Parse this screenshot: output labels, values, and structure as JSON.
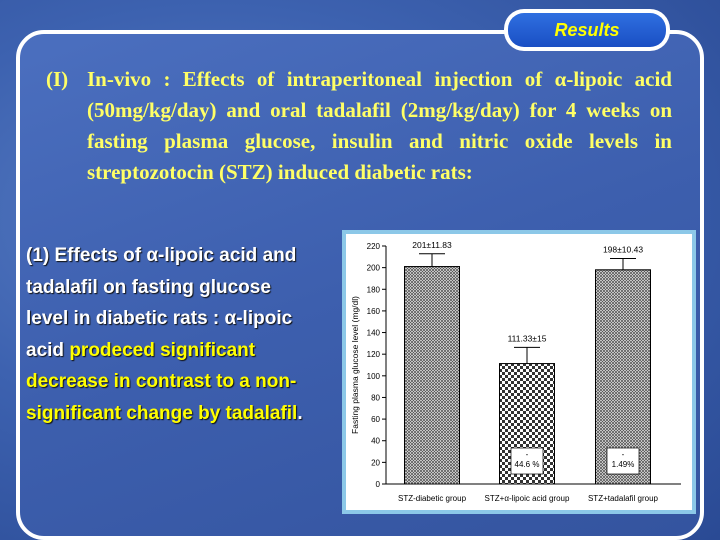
{
  "header": {
    "tab_label": "Results"
  },
  "heading": {
    "number": "(I)",
    "text_before_alpha": "In-vivo : Effects of intraperitoneal injection of ",
    "alpha": "α",
    "text_after_alpha": "-lipoic acid (50mg/kg/day) and oral tadalafil (2mg/kg/day) for 4 weeks on fasting plasma glucose, insulin and nitric oxide levels in streptozotocin (STZ) induced diabetic rats:"
  },
  "subheading": {
    "part1": "(1) Effects of ",
    "alpha1": "α",
    "part2": "-lipoic acid and tadalafil on fasting glucose level in diabetic  rats : ",
    "alpha2": "α",
    "part3": "-lipoic acid ",
    "highlight": "prodeced significant decrease in contrast to a non-significant change by tadalafil",
    "end": "."
  },
  "colors": {
    "heading": "#ffff66",
    "highlight": "#ffff00",
    "bar_fill": "#444444",
    "chart_border": "#8cc8e8"
  },
  "chart_data": {
    "type": "bar",
    "categories": [
      "STZ-diabetic group",
      "STZ+α-lipoic acid group",
      "STZ+tadalafil group"
    ],
    "values": [
      201,
      111.33,
      198
    ],
    "errors": [
      11.83,
      15,
      10.43
    ],
    "value_labels": [
      "201±11.83",
      "111.33±15",
      "198±10.43"
    ],
    "percent_labels": [
      "",
      "-\n44.6 %",
      "-\n1.49%"
    ],
    "ylabel": "Fasting plasma glucose level (mg/dl)",
    "ylim": [
      0,
      220
    ],
    "yticks": [
      0,
      20,
      40,
      60,
      80,
      100,
      120,
      140,
      160,
      180,
      200,
      220
    ],
    "patterns": [
      "crosshatch-fine",
      "checker",
      "crosshatch-fine"
    ]
  }
}
